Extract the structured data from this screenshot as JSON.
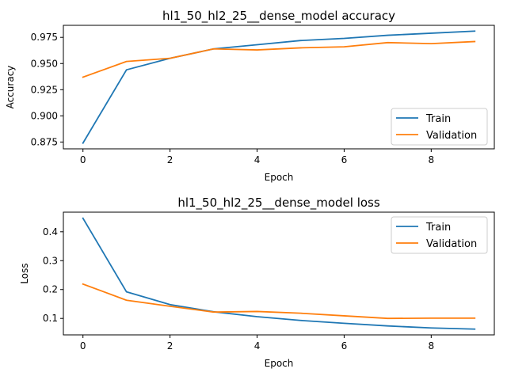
{
  "chart_data": [
    {
      "type": "line",
      "title": "hl1_50_hl2_25__dense_model accuracy",
      "xlabel": "Epoch",
      "ylabel": "Accuracy",
      "x": [
        0,
        1,
        2,
        3,
        4,
        5,
        6,
        7,
        8,
        9
      ],
      "xlim": [
        -0.45,
        9.45
      ],
      "ylim": [
        0.8685,
        0.9865
      ],
      "xticks": [
        0,
        2,
        4,
        6,
        8
      ],
      "xtick_labels": [
        "0",
        "2",
        "4",
        "6",
        "8"
      ],
      "yticks": [
        0.875,
        0.9,
        0.925,
        0.95,
        0.975
      ],
      "ytick_labels": [
        "0.875",
        "0.900",
        "0.925",
        "0.950",
        "0.975"
      ],
      "grid": false,
      "legend_position": "lower-right",
      "series": [
        {
          "name": "Train",
          "color": "#1f77b4",
          "values": [
            0.874,
            0.944,
            0.955,
            0.964,
            0.968,
            0.972,
            0.974,
            0.977,
            0.979,
            0.981
          ]
        },
        {
          "name": "Validation",
          "color": "#ff7f0e",
          "values": [
            0.937,
            0.952,
            0.955,
            0.964,
            0.963,
            0.965,
            0.966,
            0.97,
            0.969,
            0.971
          ]
        }
      ]
    },
    {
      "type": "line",
      "title": "hl1_50_hl2_25__dense_model loss",
      "xlabel": "Epoch",
      "ylabel": "Loss",
      "x": [
        0,
        1,
        2,
        3,
        4,
        5,
        6,
        7,
        8,
        9
      ],
      "xlim": [
        -0.45,
        9.45
      ],
      "ylim": [
        0.043,
        0.468
      ],
      "xticks": [
        0,
        2,
        4,
        6,
        8
      ],
      "xtick_labels": [
        "0",
        "2",
        "4",
        "6",
        "8"
      ],
      "yticks": [
        0.1,
        0.2,
        0.3,
        0.4
      ],
      "ytick_labels": [
        "0.1",
        "0.2",
        "0.3",
        "0.4"
      ],
      "grid": false,
      "legend_position": "upper-right",
      "series": [
        {
          "name": "Train",
          "color": "#1f77b4",
          "values": [
            0.447,
            0.192,
            0.148,
            0.123,
            0.106,
            0.093,
            0.083,
            0.074,
            0.067,
            0.063
          ]
        },
        {
          "name": "Validation",
          "color": "#ff7f0e",
          "values": [
            0.219,
            0.163,
            0.142,
            0.122,
            0.124,
            0.118,
            0.109,
            0.1,
            0.101,
            0.101
          ]
        }
      ]
    }
  ]
}
